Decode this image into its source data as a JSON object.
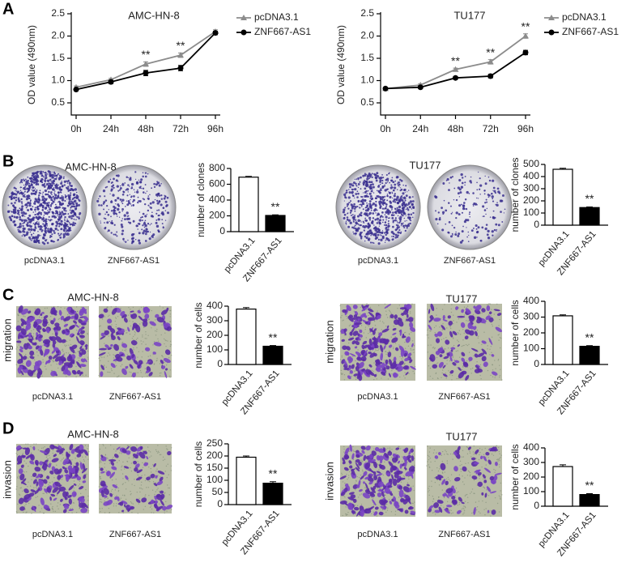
{
  "panel_labels": [
    "A",
    "B",
    "C",
    "D"
  ],
  "image_groups": [
    {
      "title": "AMC-HN-8",
      "captions": [
        "pcDNA3.1",
        "ZNF667-AS1"
      ]
    },
    {
      "title": "TU177",
      "captions": [
        "pcDNA3.1",
        "ZNF667-AS1"
      ]
    },
    {
      "title": "AMC-HN-8",
      "row_label": "migration",
      "captions": [
        "pcDNA3.1",
        "ZNF667-AS1"
      ]
    },
    {
      "title": "TU177",
      "row_label": "migration",
      "captions": [
        "pcDNA3.1",
        "ZNF667-AS1"
      ]
    },
    {
      "title": "AMC-HN-8",
      "row_label": "invasion",
      "captions": [
        "pcDNA3.1",
        "ZNF667-AS1"
      ]
    },
    {
      "title": "TU177",
      "row_label": "invasion",
      "captions": [
        "pcDNA3.1",
        "ZNF667-AS1"
      ]
    }
  ],
  "chart_data": [
    {
      "type": "line",
      "title": "AMC-HN-8",
      "y_label": "OD value (490nm)",
      "categories": [
        "0h",
        "24h",
        "48h",
        "72h",
        "96h"
      ],
      "series": [
        {
          "name": "pcDNA3.1",
          "color": "#8c8c8c",
          "marker": "triangle",
          "values": [
            0.85,
            1.02,
            1.37,
            1.57,
            2.1
          ],
          "errors": [
            0.03,
            0.03,
            0.05,
            0.05,
            0.04
          ]
        },
        {
          "name": "ZNF667-AS1",
          "color": "#000000",
          "marker": "circle",
          "values": [
            0.8,
            0.97,
            1.17,
            1.28,
            2.07
          ],
          "errors": [
            0.03,
            0.04,
            0.06,
            0.06,
            0.04
          ]
        }
      ],
      "ylim": [
        0.5,
        2.5
      ],
      "yticks": [
        0.5,
        {
          "value": 1,
          "label": "1.0"
        },
        1.5,
        {
          "value": 2,
          "label": "2.0"
        },
        2.5
      ],
      "annotations": [
        {
          "x": "48h",
          "text": "**"
        },
        {
          "x": "72h",
          "text": "**"
        }
      ]
    },
    {
      "type": "line",
      "title": "TU177",
      "y_label": "OD value (490nm)",
      "categories": [
        "0h",
        "24h",
        "48h",
        "72h",
        "96h"
      ],
      "series": [
        {
          "name": "pcDNA3.1",
          "color": "#8c8c8c",
          "marker": "triangle",
          "values": [
            0.82,
            0.9,
            1.25,
            1.42,
            2.0
          ],
          "errors": [
            0.02,
            0.03,
            0.03,
            0.05,
            0.05
          ]
        },
        {
          "name": "ZNF667-AS1",
          "color": "#000000",
          "marker": "circle",
          "values": [
            0.82,
            0.85,
            1.06,
            1.1,
            1.63
          ],
          "errors": [
            0.02,
            0.03,
            0.03,
            0.04,
            0.05
          ]
        }
      ],
      "ylim": [
        0.5,
        2.5
      ],
      "yticks": [
        0.5,
        {
          "value": 1,
          "label": "1.0"
        },
        1.5,
        {
          "value": 2,
          "label": "2.0"
        },
        2.5
      ],
      "annotations": [
        {
          "x": "48h",
          "text": "**"
        },
        {
          "x": "72h",
          "text": "**"
        },
        {
          "x": "96h",
          "text": "**"
        }
      ]
    },
    {
      "type": "bar",
      "y_label": "number of clones",
      "categories": [
        "pcDNA3.1",
        "ZNF667-AS1"
      ],
      "colors": [
        "#ffffff",
        "#000000"
      ],
      "values": [
        690,
        205
      ],
      "errors": [
        10,
        8
      ],
      "ylim": [
        0,
        800
      ],
      "yticks": [
        0,
        200,
        400,
        600,
        800
      ],
      "annotations": [
        {
          "x": "ZNF667-AS1",
          "text": "**"
        }
      ]
    },
    {
      "type": "bar",
      "y_label": "number of clones",
      "categories": [
        "pcDNA3.1",
        "ZNF667-AS1"
      ],
      "colors": [
        "#ffffff",
        "#000000"
      ],
      "values": [
        460,
        145
      ],
      "errors": [
        8,
        5
      ],
      "ylim": [
        0,
        500
      ],
      "yticks": [
        0,
        100,
        200,
        300,
        400,
        500
      ],
      "annotations": [
        {
          "x": "ZNF667-AS1",
          "text": "**"
        }
      ]
    },
    {
      "type": "bar",
      "y_label": "number of cells",
      "categories": [
        "pcDNA3.1",
        "ZNF667-AS1"
      ],
      "colors": [
        "#ffffff",
        "#000000"
      ],
      "values": [
        380,
        125
      ],
      "errors": [
        10,
        5
      ],
      "ylim": [
        0,
        400
      ],
      "yticks": [
        0,
        100,
        200,
        300,
        400
      ],
      "annotations": [
        {
          "x": "ZNF667-AS1",
          "text": "**"
        }
      ]
    },
    {
      "type": "bar",
      "y_label": "number of cells",
      "categories": [
        "pcDNA3.1",
        "ZNF667-AS1"
      ],
      "colors": [
        "#ffffff",
        "#000000"
      ],
      "values": [
        308,
        115
      ],
      "errors": [
        6,
        4
      ],
      "ylim": [
        0,
        400
      ],
      "yticks": [
        0,
        100,
        200,
        300,
        400
      ],
      "annotations": [
        {
          "x": "ZNF667-AS1",
          "text": "**"
        }
      ]
    },
    {
      "type": "bar",
      "y_label": "number of cells",
      "categories": [
        "pcDNA3.1",
        "ZNF667-AS1"
      ],
      "colors": [
        "#ffffff",
        "#000000"
      ],
      "values": [
        195,
        88
      ],
      "errors": [
        5,
        6
      ],
      "ylim": [
        0,
        250
      ],
      "yticks": [
        0,
        50,
        100,
        150,
        200,
        250
      ],
      "annotations": [
        {
          "x": "ZNF667-AS1",
          "text": "**"
        }
      ]
    },
    {
      "type": "bar",
      "y_label": "number of cells",
      "categories": [
        "pcDNA3.1",
        "ZNF667-AS1"
      ],
      "colors": [
        "#ffffff",
        "#000000"
      ],
      "values": [
        272,
        80
      ],
      "errors": [
        12,
        6
      ],
      "ylim": [
        0,
        400
      ],
      "yticks": [
        0,
        100,
        200,
        300,
        400
      ],
      "annotations": [
        {
          "x": "ZNF667-AS1",
          "text": "**"
        }
      ]
    }
  ]
}
